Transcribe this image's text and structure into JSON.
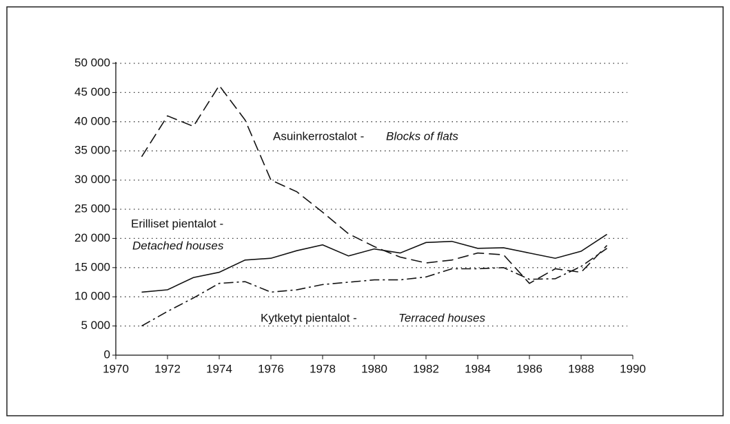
{
  "chart_data": {
    "type": "line",
    "x": [
      1971,
      1972,
      1973,
      1974,
      1975,
      1976,
      1977,
      1978,
      1979,
      1980,
      1981,
      1982,
      1983,
      1984,
      1985,
      1986,
      1987,
      1988,
      1989
    ],
    "series": [
      {
        "name": "Asuinkerrostalot -",
        "name_en": "Blocks of flats",
        "color": "#111111",
        "dash": "dashed",
        "values": [
          34000,
          41000,
          39200,
          46200,
          40300,
          30000,
          28000,
          24500,
          20800,
          18600,
          16800,
          15800,
          16300,
          17500,
          17200,
          12300,
          14800,
          14200,
          18800
        ]
      },
      {
        "name": "Erilliset pientalot -",
        "name_en": "Detached houses",
        "color": "#111111",
        "dash": "solid",
        "values": [
          10800,
          11200,
          13300,
          14200,
          16300,
          16600,
          17900,
          18900,
          17000,
          18200,
          17500,
          19300,
          19500,
          18300,
          18400,
          17500,
          16600,
          17800,
          20700
        ]
      },
      {
        "name": "Kytketyt pientalot -",
        "name_en": "Terraced houses",
        "color": "#111111",
        "dash": "dashdot",
        "values": [
          5000,
          7500,
          9800,
          12300,
          12600,
          10800,
          11200,
          12100,
          12500,
          12900,
          12900,
          13400,
          14800,
          14800,
          15000,
          13000,
          13100,
          15200,
          18300
        ]
      }
    ],
    "xlim": [
      1970,
      1990
    ],
    "xticks": [
      1970,
      1972,
      1974,
      1976,
      1978,
      1980,
      1982,
      1984,
      1986,
      1988,
      1990
    ],
    "ylim": [
      0,
      50000
    ],
    "yticks": [
      0,
      {
        "value": 5000,
        "label": "5 000"
      },
      {
        "value": 10000,
        "label": "10 000"
      },
      {
        "value": 15000,
        "label": "15 000"
      },
      {
        "value": 20000,
        "label": "20 000"
      },
      {
        "value": 25000,
        "label": "25 000"
      },
      {
        "value": 30000,
        "label": "30 000"
      },
      {
        "value": 35000,
        "label": "35 000"
      },
      {
        "value": 40000,
        "label": "40 000"
      },
      {
        "value": 45000,
        "label": "45 000"
      },
      {
        "value": 50000,
        "label": "50 000"
      }
    ],
    "grid": true
  }
}
